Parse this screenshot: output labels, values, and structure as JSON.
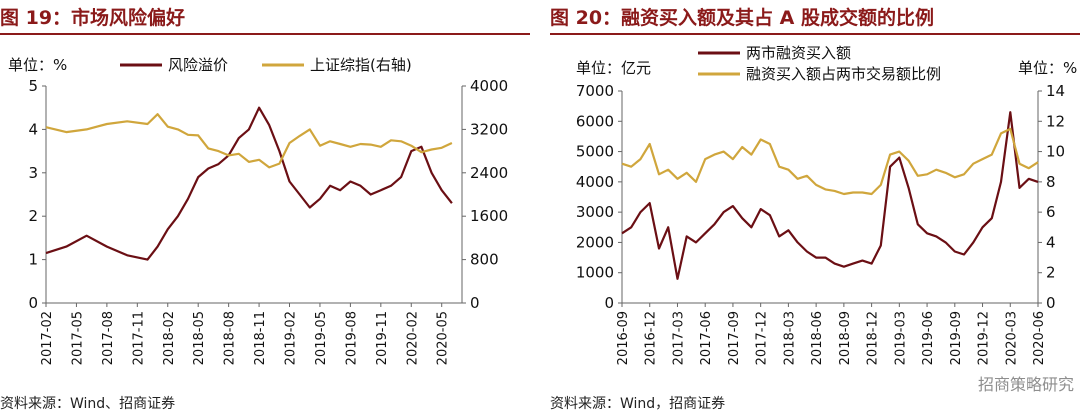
{
  "colors": {
    "risk": "#6b0f14",
    "index": "#d0a63c",
    "title": "#8b1a1a"
  },
  "chart_data": [
    {
      "type": "line",
      "title": "图 19：市场风险偏好",
      "source": "资料来源：Wind、招商证券",
      "left_unit": "单位：%",
      "ylim": [
        0,
        5
      ],
      "yticks": [
        0,
        1,
        2,
        3,
        4,
        5
      ],
      "ylim_right": [
        0,
        4000
      ],
      "yticks_right": [
        0,
        800,
        1600,
        2400,
        3200,
        4000
      ],
      "x_start": "2017-02",
      "xticks": [
        "2017-02",
        "2017-05",
        "2017-08",
        "2017-11",
        "2018-02",
        "2018-05",
        "2018-08",
        "2018-11",
        "2019-02",
        "2019-05",
        "2019-08",
        "2019-11",
        "2020-02",
        "2020-05"
      ],
      "series": [
        {
          "name": "风险溢价",
          "axis": "left",
          "x": [
            "2017-02",
            "2017-04",
            "2017-06",
            "2017-08",
            "2017-10",
            "2017-12",
            "2018-01",
            "2018-02",
            "2018-03",
            "2018-04",
            "2018-05",
            "2018-06",
            "2018-07",
            "2018-08",
            "2018-09",
            "2018-10",
            "2018-11",
            "2018-12",
            "2019-01",
            "2019-02",
            "2019-03",
            "2019-04",
            "2019-05",
            "2019-06",
            "2019-07",
            "2019-08",
            "2019-09",
            "2019-10",
            "2019-11",
            "2019-12",
            "2020-01",
            "2020-02",
            "2020-03",
            "2020-04",
            "2020-05",
            "2020-06"
          ],
          "values": [
            1.15,
            1.3,
            1.55,
            1.3,
            1.1,
            1.0,
            1.3,
            1.7,
            2.0,
            2.4,
            2.9,
            3.1,
            3.2,
            3.4,
            3.8,
            4.0,
            4.5,
            4.1,
            3.5,
            2.8,
            2.5,
            2.2,
            2.4,
            2.7,
            2.6,
            2.8,
            2.7,
            2.5,
            2.6,
            2.7,
            2.9,
            3.5,
            3.6,
            3.0,
            2.6,
            2.3
          ]
        },
        {
          "name": "上证综指(右轴)",
          "axis": "right",
          "x": [
            "2017-02",
            "2017-04",
            "2017-06",
            "2017-08",
            "2017-10",
            "2017-12",
            "2018-01",
            "2018-02",
            "2018-03",
            "2018-04",
            "2018-05",
            "2018-06",
            "2018-07",
            "2018-08",
            "2018-09",
            "2018-10",
            "2018-11",
            "2018-12",
            "2019-01",
            "2019-02",
            "2019-03",
            "2019-04",
            "2019-05",
            "2019-06",
            "2019-07",
            "2019-08",
            "2019-09",
            "2019-10",
            "2019-11",
            "2019-12",
            "2020-01",
            "2020-02",
            "2020-03",
            "2020-04",
            "2020-05",
            "2020-06"
          ],
          "values": [
            3240,
            3150,
            3200,
            3300,
            3350,
            3300,
            3480,
            3250,
            3200,
            3100,
            3090,
            2850,
            2800,
            2720,
            2750,
            2600,
            2640,
            2500,
            2570,
            2950,
            3080,
            3200,
            2900,
            2980,
            2930,
            2880,
            2930,
            2920,
            2880,
            3000,
            2980,
            2900,
            2780,
            2830,
            2860,
            2950
          ]
        }
      ]
    },
    {
      "type": "line",
      "title": "图 20：融资买入额及其占 A 股成交额的比例",
      "source": "资料来源：Wind，招商证券",
      "left_unit": "单位：亿元",
      "right_unit": "单位：%",
      "watermark": "招商策略研究",
      "ylim": [
        0,
        7000
      ],
      "yticks": [
        0,
        1000,
        2000,
        3000,
        4000,
        5000,
        6000,
        7000
      ],
      "ylim_right": [
        0,
        14
      ],
      "yticks_right": [
        0,
        2,
        4,
        6,
        8,
        10,
        12,
        14
      ],
      "x_start": "2016-09",
      "xticks": [
        "2016-09",
        "2016-12",
        "2017-03",
        "2017-06",
        "2017-09",
        "2017-12",
        "2018-03",
        "2018-06",
        "2018-09",
        "2018-12",
        "2019-03",
        "2019-06",
        "2019-09",
        "2019-12",
        "2020-03",
        "2020-06"
      ],
      "series": [
        {
          "name": "两市融资买入额",
          "axis": "left",
          "x": [
            "2016-09",
            "2016-10",
            "2016-11",
            "2016-12",
            "2017-01",
            "2017-02",
            "2017-03",
            "2017-04",
            "2017-05",
            "2017-06",
            "2017-07",
            "2017-08",
            "2017-09",
            "2017-10",
            "2017-11",
            "2017-12",
            "2018-01",
            "2018-02",
            "2018-03",
            "2018-04",
            "2018-05",
            "2018-06",
            "2018-07",
            "2018-08",
            "2018-09",
            "2018-10",
            "2018-11",
            "2018-12",
            "2019-01",
            "2019-02",
            "2019-03",
            "2019-04",
            "2019-05",
            "2019-06",
            "2019-07",
            "2019-08",
            "2019-09",
            "2019-10",
            "2019-11",
            "2019-12",
            "2020-01",
            "2020-02",
            "2020-03",
            "2020-04",
            "2020-05",
            "2020-06"
          ],
          "values": [
            2300,
            2500,
            3000,
            3300,
            1800,
            2500,
            800,
            2200,
            2000,
            2300,
            2600,
            3000,
            3200,
            2800,
            2500,
            3100,
            2900,
            2200,
            2400,
            2000,
            1700,
            1500,
            1500,
            1300,
            1200,
            1300,
            1400,
            1300,
            1900,
            4500,
            4800,
            3800,
            2600,
            2300,
            2200,
            2000,
            1700,
            1600,
            2000,
            2500,
            2800,
            4000,
            6300,
            3800,
            4100,
            4000
          ]
        },
        {
          "name": "融资买入额占两市交易额比例",
          "axis": "right",
          "x": [
            "2016-09",
            "2016-10",
            "2016-11",
            "2016-12",
            "2017-01",
            "2017-02",
            "2017-03",
            "2017-04",
            "2017-05",
            "2017-06",
            "2017-07",
            "2017-08",
            "2017-09",
            "2017-10",
            "2017-11",
            "2017-12",
            "2018-01",
            "2018-02",
            "2018-03",
            "2018-04",
            "2018-05",
            "2018-06",
            "2018-07",
            "2018-08",
            "2018-09",
            "2018-10",
            "2018-11",
            "2018-12",
            "2019-01",
            "2019-02",
            "2019-03",
            "2019-04",
            "2019-05",
            "2019-06",
            "2019-07",
            "2019-08",
            "2019-09",
            "2019-10",
            "2019-11",
            "2019-12",
            "2020-01",
            "2020-02",
            "2020-03",
            "2020-04",
            "2020-05",
            "2020-06"
          ],
          "values": [
            9.2,
            9.0,
            9.5,
            10.5,
            8.5,
            8.8,
            8.2,
            8.6,
            8.0,
            9.5,
            9.8,
            10.0,
            9.5,
            10.3,
            9.8,
            10.8,
            10.5,
            9.0,
            8.8,
            8.2,
            8.4,
            7.8,
            7.5,
            7.4,
            7.2,
            7.3,
            7.3,
            7.2,
            7.8,
            9.8,
            10.0,
            9.4,
            8.4,
            8.5,
            8.8,
            8.6,
            8.3,
            8.5,
            9.2,
            9.5,
            9.8,
            11.2,
            11.5,
            9.2,
            8.9,
            9.3
          ]
        }
      ]
    }
  ]
}
